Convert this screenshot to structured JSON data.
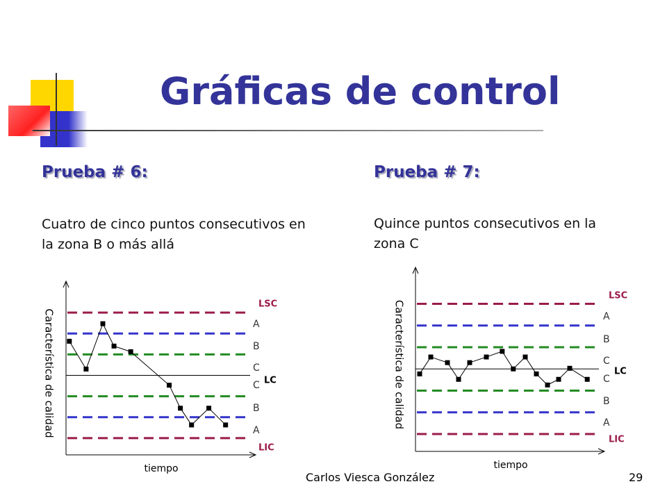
{
  "title": "Gráficas de control",
  "footer": {
    "author": "Carlos Viesca González",
    "page": "29"
  },
  "chart_data": [
    {
      "type": "line",
      "heading": "Prueba # 6:",
      "description": "Cuatro de cinco puntos consecutivos en la zona B o más allá",
      "xlabel": "tiempo",
      "ylabel": "Característica de calidad",
      "zone_labels": [
        "LSC",
        "A",
        "B",
        "C",
        "LC",
        "C",
        "B",
        "A",
        "LIC"
      ],
      "limits": [
        3,
        2,
        1,
        -1,
        -2,
        -3
      ],
      "limit_colors": [
        "#9b1b4b",
        "#3333cc",
        "#228b22",
        "#228b22",
        "#3333cc",
        "#9b1b4b"
      ],
      "center": 0,
      "xlim": [
        0,
        33
      ],
      "ylim": [
        -3.8,
        4
      ],
      "series": [
        {
          "name": "muestras",
          "color": "#000000",
          "x": [
            0.6,
            3.6,
            6.6,
            8.6,
            11.6,
            18.5,
            20.5,
            22.5,
            25.6,
            28.6
          ],
          "values": [
            1.63,
            0.3,
            2.47,
            1.4,
            1.13,
            -0.47,
            -1.57,
            -2.37,
            -1.57,
            -2.37
          ]
        }
      ]
    },
    {
      "type": "line",
      "heading": "Prueba # 7:",
      "description": "Quince puntos consecutivos en la zona C",
      "xlabel": "tiempo",
      "ylabel": "Característica de calidad",
      "zone_labels": [
        "LSC",
        "A",
        "B",
        "C",
        "LC",
        "C",
        "B",
        "A",
        "LIC"
      ],
      "limits": [
        3,
        2,
        1,
        -1,
        -2,
        -3
      ],
      "limit_colors": [
        "#9b1b4b",
        "#3333cc",
        "#228b22",
        "#228b22",
        "#3333cc",
        "#9b1b4b"
      ],
      "center": 0,
      "xlim": [
        0,
        33
      ],
      "ylim": [
        -3.8,
        4.2
      ],
      "series": [
        {
          "name": "muestras",
          "color": "#000000",
          "x": [
            0.75,
            2.75,
            5.75,
            7.75,
            9.75,
            12.75,
            15.6,
            17.6,
            19.75,
            21.75,
            23.75,
            25.75,
            27.75,
            30.9
          ],
          "values": [
            -0.23,
            0.55,
            0.29,
            -0.48,
            0.29,
            0.55,
            0.81,
            0,
            0.55,
            -0.23,
            -0.74,
            -0.48,
            0.03,
            -0.48
          ]
        }
      ]
    }
  ]
}
